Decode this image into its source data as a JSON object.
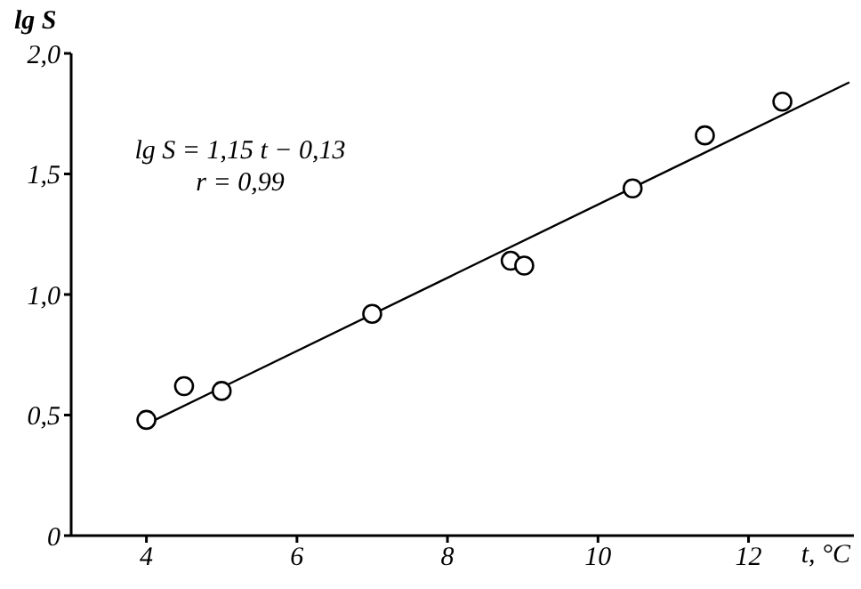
{
  "chart_data": {
    "type": "scatter",
    "xlabel": "t, °C",
    "ylabel": "lg S",
    "annotations": [
      "lg S = 1,15 t − 0,13",
      "r = 0,99"
    ],
    "xlim": [
      3.0,
      13.4
    ],
    "xticks": [
      4,
      6,
      8,
      10,
      12
    ],
    "ylim": [
      0,
      2.0
    ],
    "yticks": [
      {
        "value": 0,
        "label": "0"
      },
      {
        "value": 0.5,
        "label": "0,5"
      },
      {
        "value": 1.0,
        "label": "1,0"
      },
      {
        "value": 1.5,
        "label": "1,5"
      },
      {
        "value": 2.0,
        "label": "2,0"
      }
    ],
    "grid": false,
    "legend": false,
    "series": [
      {
        "marker": "circle",
        "color": "#000000",
        "x": [
          4.0,
          4.5,
          5.0,
          7.0,
          8.84,
          9.02,
          10.46,
          11.42,
          12.45
        ],
        "values": [
          0.48,
          0.62,
          0.6,
          0.92,
          1.14,
          1.12,
          1.44,
          1.66,
          1.8
        ]
      },
      {
        "type": "line",
        "color": "#000000",
        "line_style": "solid",
        "x": [
          4.05,
          13.34
        ],
        "values": [
          0.47,
          1.88
        ]
      }
    ]
  }
}
